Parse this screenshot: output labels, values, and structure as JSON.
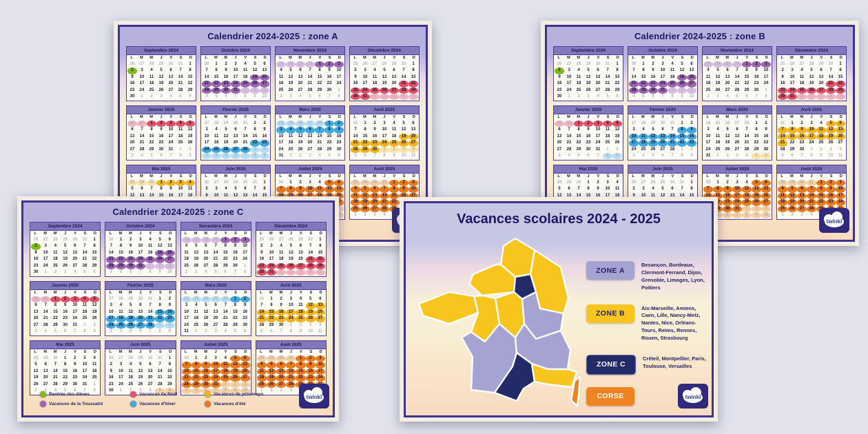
{
  "page": {
    "background": "#e1e2ec"
  },
  "logo": {
    "text": "twinkl"
  },
  "weekday_headers": [
    "L",
    "M",
    "M",
    "J",
    "V",
    "S",
    "D"
  ],
  "months": [
    {
      "label": "Septembre 2024",
      "days": 30,
      "start": 6,
      "prev_days": 31
    },
    {
      "label": "Octobre 2024",
      "days": 31,
      "start": 1,
      "prev_days": 30
    },
    {
      "label": "Novembre 2024",
      "days": 30,
      "start": 4,
      "prev_days": 31
    },
    {
      "label": "Décembre 2024",
      "days": 31,
      "start": 6,
      "prev_days": 30
    },
    {
      "label": "Janvier 2025",
      "days": 31,
      "start": 2,
      "prev_days": 31
    },
    {
      "label": "Février 2025",
      "days": 28,
      "start": 5,
      "prev_days": 31
    },
    {
      "label": "Mars 2025",
      "days": 31,
      "start": 5,
      "prev_days": 28
    },
    {
      "label": "Avril 2025",
      "days": 30,
      "start": 1,
      "prev_days": 31
    },
    {
      "label": "Mai 2025",
      "days": 31,
      "start": 3,
      "prev_days": 30
    },
    {
      "label": "Juin 2025",
      "days": 30,
      "start": 6,
      "prev_days": 31
    },
    {
      "label": "Juillet 2025",
      "days": 31,
      "start": 1,
      "prev_days": 30
    },
    {
      "label": "Août 2025",
      "days": 31,
      "start": 4,
      "prev_days": 31
    }
  ],
  "colors": {
    "rentree": {
      "main": "#7fbc1b",
      "light": "#c8e39a"
    },
    "toussaint": {
      "main": "#9a64b0",
      "light": "#d6bde0"
    },
    "noel": {
      "main": "#e14f68",
      "light": "#f2b3c0"
    },
    "hiver": {
      "main": "#3fa8dc",
      "light": "#b5def2"
    },
    "printemps": {
      "main": "#f2b31b",
      "light": "#f9e2a6"
    },
    "ete": {
      "main": "#e8791d",
      "light": "#f6cfa0"
    }
  },
  "common_ranges": [
    {
      "type": "rentree",
      "from": [
        0,
        2
      ],
      "to": [
        0,
        2
      ]
    },
    {
      "type": "toussaint",
      "from": [
        1,
        19
      ],
      "to": [
        2,
        3
      ]
    },
    {
      "type": "noel",
      "from": [
        3,
        21
      ],
      "to": [
        4,
        5
      ]
    },
    {
      "type": "ete",
      "from": [
        10,
        5
      ],
      "to": [
        11,
        31
      ]
    }
  ],
  "cards": {
    "zone_a": {
      "title": "Calendrier 2024-2025 : zone A",
      "ranges": [
        {
          "type": "hiver",
          "from": [
            5,
            22
          ],
          "to": [
            6,
            9
          ]
        },
        {
          "type": "printemps",
          "from": [
            7,
            19
          ],
          "to": [
            8,
            4
          ]
        }
      ]
    },
    "zone_b": {
      "title": "Calendrier 2024-2025 : zone B",
      "ranges": [
        {
          "type": "hiver",
          "from": [
            5,
            8
          ],
          "to": [
            5,
            23
          ]
        },
        {
          "type": "printemps",
          "from": [
            7,
            5
          ],
          "to": [
            7,
            21
          ]
        }
      ]
    },
    "zone_c": {
      "title": "Calendrier 2024-2025 : zone C",
      "ranges": [
        {
          "type": "hiver",
          "from": [
            5,
            15
          ],
          "to": [
            6,
            2
          ]
        },
        {
          "type": "printemps",
          "from": [
            7,
            12
          ],
          "to": [
            7,
            27
          ]
        }
      ]
    }
  },
  "calendar_legend": [
    {
      "type": "rentree",
      "label": "Rentrée des élèves"
    },
    {
      "type": "toussaint",
      "label": "Vacances de la Toussaint"
    },
    {
      "type": "noel",
      "label": "Vacances de Noël"
    },
    {
      "type": "hiver",
      "label": "Vacances d'hiver"
    },
    {
      "type": "printemps",
      "label": "Vacances de printemps"
    },
    {
      "type": "ete",
      "label": "Vacances d'été"
    }
  ],
  "map_card": {
    "title": "Vacances scolaires 2024 - 2025",
    "zone_colors": {
      "A": "#a5a3d2",
      "B": "#f7c51e",
      "C": "#232a68",
      "CORSE": "#ef8322"
    },
    "region_zones": {
      "hauts-de-france": "B",
      "normandie": "B",
      "grand-est": "B",
      "ile-de-france": "C",
      "bretagne": "B",
      "pays-de-la-loire": "B",
      "centre-val-de-loire": "B",
      "bourgogne-franche-comte": "A",
      "nouvelle-aquitaine": "A",
      "auvergne-rhone-alpes": "A",
      "occitanie": "C",
      "paca": "B",
      "corse": "CORSE"
    },
    "legend": [
      {
        "key": "A",
        "badge": "ZONE A",
        "text_color": "#241f63",
        "text": "Besançon, Bordeaux, Clermont-Ferrand, Dijon, Grenoble, Limoges, Lyon, Poitiers"
      },
      {
        "key": "B",
        "badge": "ZONE B",
        "text_color": "#241f63",
        "text": "Aix-Marseille, Amiens, Caen, Lille, Nancy-Metz, Nantes, Nice, Orléans-Tours, Reims, Rennes, Rouen, Strasbourg"
      },
      {
        "key": "C",
        "badge": "ZONE C",
        "text_color": "#ffffff",
        "text": "Créteil, Montpellier, Paris, Toulouse, Versailles"
      },
      {
        "key": "CORSE",
        "badge": "CORSE",
        "text_color": "#ffffff",
        "text": ""
      }
    ]
  }
}
